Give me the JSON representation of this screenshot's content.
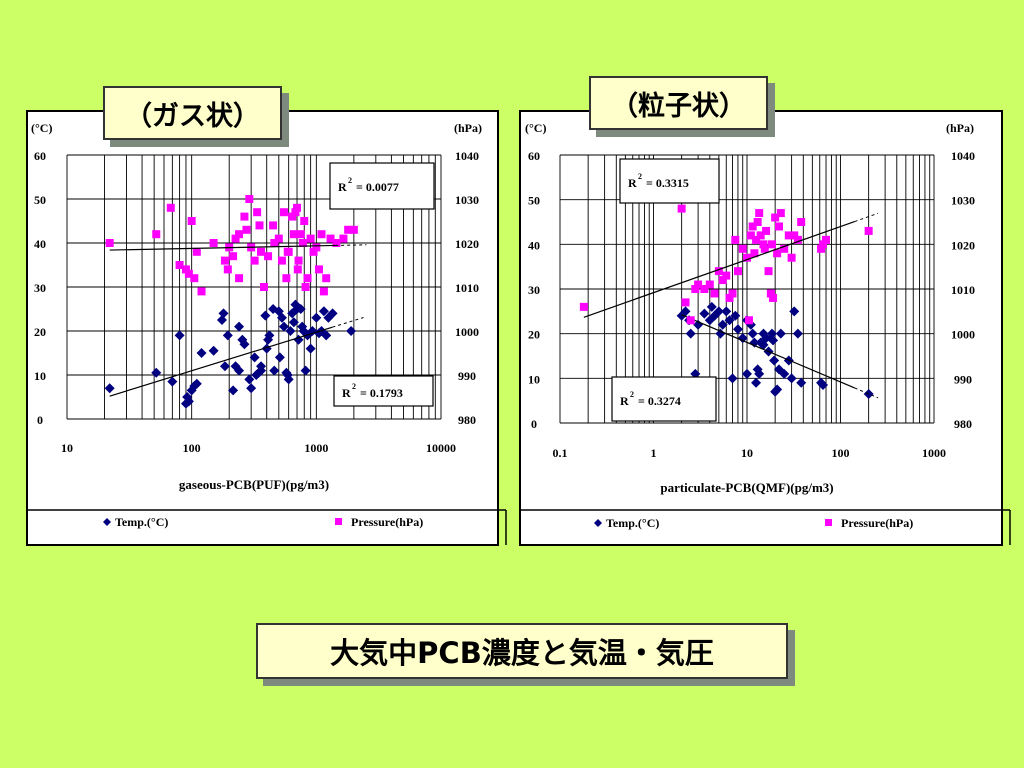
{
  "slide": {
    "label_gas": "（ガス状）",
    "label_particle": "（粒子状）",
    "title": "大気中PCB濃度と気温・気圧"
  },
  "colors": {
    "background": "#ccff66",
    "temp_marker": "#000080",
    "pressure_marker": "#ff00ff",
    "label_box": "#ffffcc"
  },
  "chart_data": [
    {
      "type": "scatter",
      "xlabel": "gaseous-PCB(PUF)(pg/m3)",
      "x_scale": "log",
      "xlim": [
        10,
        10000
      ],
      "x_ticks": [
        "10",
        "100",
        "1000",
        "10000"
      ],
      "y_left_label": "(°C)",
      "ylim_left": [
        0,
        60
      ],
      "y_left_ticks": [
        "0",
        "10",
        "20",
        "30",
        "40",
        "50",
        "60"
      ],
      "y_right_label": "(hPa)",
      "ylim_right": [
        980,
        1040
      ],
      "y_right_ticks": [
        "980",
        "990",
        "1000",
        "1010",
        "1020",
        "1030",
        "1040"
      ],
      "grid": true,
      "legend_position": "bottom",
      "series": [
        {
          "name": "Temp.(°C)",
          "axis": "left",
          "marker": "diamond",
          "color": "#000080",
          "points": [
            [
              22,
              7
            ],
            [
              52,
              10.5
            ],
            [
              70,
              8.5
            ],
            [
              80,
              19
            ],
            [
              90,
              3.5
            ],
            [
              92,
              5
            ],
            [
              95,
              4
            ],
            [
              100,
              6.5
            ],
            [
              105,
              7.5
            ],
            [
              110,
              8
            ],
            [
              120,
              15
            ],
            [
              150,
              15.5
            ],
            [
              175,
              22.5
            ],
            [
              180,
              24
            ],
            [
              185,
              12
            ],
            [
              195,
              19
            ],
            [
              215,
              6.5
            ],
            [
              225,
              12
            ],
            [
              240,
              21
            ],
            [
              240,
              11
            ],
            [
              255,
              18
            ],
            [
              265,
              17
            ],
            [
              290,
              9
            ],
            [
              300,
              7
            ],
            [
              320,
              14
            ],
            [
              330,
              10
            ],
            [
              345,
              10.5
            ],
            [
              360,
              11
            ],
            [
              360,
              12
            ],
            [
              390,
              23.5
            ],
            [
              400,
              16
            ],
            [
              410,
              18
            ],
            [
              420,
              19
            ],
            [
              450,
              25
            ],
            [
              460,
              11
            ],
            [
              500,
              24.5
            ],
            [
              510,
              14
            ],
            [
              530,
              23
            ],
            [
              550,
              21
            ],
            [
              575,
              10.5
            ],
            [
              590,
              10
            ],
            [
              600,
              9
            ],
            [
              620,
              20
            ],
            [
              640,
              24
            ],
            [
              660,
              22
            ],
            [
              680,
              26
            ],
            [
              700,
              25
            ],
            [
              720,
              18
            ],
            [
              750,
              25
            ],
            [
              770,
              21
            ],
            [
              790,
              20
            ],
            [
              820,
              11
            ],
            [
              850,
              19
            ],
            [
              900,
              16
            ],
            [
              930,
              20
            ],
            [
              1000,
              23
            ],
            [
              1050,
              19.5
            ],
            [
              1100,
              20
            ],
            [
              1150,
              24.5
            ],
            [
              1200,
              19
            ],
            [
              1250,
              23
            ],
            [
              1350,
              24
            ],
            [
              1700,
              8.5
            ],
            [
              1900,
              20
            ]
          ]
        },
        {
          "name": "Pressure(hPa)",
          "axis": "right",
          "marker": "square",
          "color": "#ff00ff",
          "points": [
            [
              22,
              1020
            ],
            [
              52,
              1022
            ],
            [
              68,
              1028
            ],
            [
              80,
              1015
            ],
            [
              90,
              1014
            ],
            [
              95,
              1013
            ],
            [
              100,
              1025
            ],
            [
              105,
              1012
            ],
            [
              110,
              1018
            ],
            [
              120,
              1009
            ],
            [
              150,
              1020
            ],
            [
              185,
              1016
            ],
            [
              195,
              1014
            ],
            [
              200,
              1019
            ],
            [
              215,
              1017
            ],
            [
              225,
              1021
            ],
            [
              240,
              1022
            ],
            [
              240,
              1012
            ],
            [
              265,
              1026
            ],
            [
              275,
              1023
            ],
            [
              290,
              1030
            ],
            [
              300,
              1019
            ],
            [
              320,
              1016
            ],
            [
              335,
              1027
            ],
            [
              350,
              1024
            ],
            [
              360,
              1018
            ],
            [
              380,
              1010
            ],
            [
              410,
              1017
            ],
            [
              450,
              1024
            ],
            [
              460,
              1020
            ],
            [
              500,
              1021
            ],
            [
              530,
              1016
            ],
            [
              550,
              1027
            ],
            [
              575,
              1012
            ],
            [
              590,
              1018
            ],
            [
              600,
              1018
            ],
            [
              640,
              1026
            ],
            [
              660,
              1022
            ],
            [
              680,
              1027
            ],
            [
              700,
              1028
            ],
            [
              710,
              1014
            ],
            [
              720,
              1016
            ],
            [
              750,
              1022
            ],
            [
              780,
              1020
            ],
            [
              800,
              1025
            ],
            [
              820,
              1010
            ],
            [
              850,
              1012
            ],
            [
              900,
              1021
            ],
            [
              950,
              1018
            ],
            [
              1000,
              1019
            ],
            [
              1050,
              1014
            ],
            [
              1100,
              1022
            ],
            [
              1150,
              1009
            ],
            [
              1200,
              1012
            ],
            [
              1300,
              1021
            ],
            [
              1450,
              1020
            ],
            [
              1650,
              1021
            ],
            [
              1800,
              1023
            ],
            [
              2000,
              1023
            ]
          ]
        }
      ],
      "trendlines": [
        {
          "series": "Temp.(°C)",
          "r2_label": "R",
          "r2_value": "= 0.1793"
        },
        {
          "series": "Pressure(hPa)",
          "r2_label": "R",
          "r2_value": "= 0.0077"
        }
      ],
      "legend": [
        "Temp.(°C)",
        "Pressure(hPa)"
      ]
    },
    {
      "type": "scatter",
      "xlabel": "particulate-PCB(QMF)(pg/m3)",
      "x_scale": "log",
      "xlim": [
        0.1,
        1000
      ],
      "x_ticks": [
        "0.1",
        "1",
        "10",
        "100",
        "1000"
      ],
      "y_left_label": "(°C)",
      "ylim_left": [
        0,
        60
      ],
      "y_left_ticks": [
        "0",
        "10",
        "20",
        "30",
        "40",
        "50",
        "60"
      ],
      "y_right_label": "(hPa)",
      "ylim_right": [
        980,
        1040
      ],
      "y_right_ticks": [
        "980",
        "990",
        "1000",
        "1010",
        "1020",
        "1030",
        "1040"
      ],
      "grid": true,
      "legend_position": "bottom",
      "series": [
        {
          "name": "Temp.(°C)",
          "axis": "left",
          "marker": "diamond",
          "color": "#000080",
          "points": [
            [
              2,
              24
            ],
            [
              2.2,
              25
            ],
            [
              2.4,
              23
            ],
            [
              2.5,
              20
            ],
            [
              2.8,
              11
            ],
            [
              3,
              22
            ],
            [
              3.5,
              24.5
            ],
            [
              4,
              23
            ],
            [
              4.2,
              26
            ],
            [
              4.5,
              24
            ],
            [
              5,
              25
            ],
            [
              5.2,
              20
            ],
            [
              5.5,
              22
            ],
            [
              6,
              25
            ],
            [
              6.5,
              23
            ],
            [
              7,
              10
            ],
            [
              7.5,
              24
            ],
            [
              8,
              21
            ],
            [
              9,
              19
            ],
            [
              10,
              11
            ],
            [
              10,
              23
            ],
            [
              11,
              22
            ],
            [
              11.5,
              20
            ],
            [
              12,
              18
            ],
            [
              12.5,
              9
            ],
            [
              13,
              12
            ],
            [
              13.5,
              11
            ],
            [
              14,
              18
            ],
            [
              15,
              17.5
            ],
            [
              15,
              20
            ],
            [
              16,
              19
            ],
            [
              17,
              16
            ],
            [
              18,
              19
            ],
            [
              18.5,
              20
            ],
            [
              19,
              18.5
            ],
            [
              19.5,
              14
            ],
            [
              20,
              7
            ],
            [
              21,
              7.5
            ],
            [
              22,
              12
            ],
            [
              23,
              20
            ],
            [
              25,
              11
            ],
            [
              28,
              14
            ],
            [
              30,
              10
            ],
            [
              32,
              25
            ],
            [
              35,
              20
            ],
            [
              38,
              9
            ],
            [
              62,
              9
            ],
            [
              65,
              8.5
            ],
            [
              200,
              6.5
            ]
          ]
        },
        {
          "name": "Pressure(hPa)",
          "axis": "right",
          "marker": "square",
          "color": "#ff00ff",
          "points": [
            [
              0.18,
              1006
            ],
            [
              2,
              1028
            ],
            [
              2.2,
              1007
            ],
            [
              2.5,
              1003
            ],
            [
              2.8,
              1010
            ],
            [
              3,
              1011
            ],
            [
              3.5,
              1010
            ],
            [
              4,
              1011
            ],
            [
              4.5,
              1009
            ],
            [
              5,
              1014
            ],
            [
              5.5,
              1012
            ],
            [
              6,
              1013
            ],
            [
              6.5,
              1008
            ],
            [
              7,
              1009
            ],
            [
              7.5,
              1021
            ],
            [
              8,
              1014
            ],
            [
              9,
              1019
            ],
            [
              10,
              1017
            ],
            [
              10.5,
              1003
            ],
            [
              11,
              1022
            ],
            [
              11.5,
              1024
            ],
            [
              12,
              1018
            ],
            [
              12.5,
              1021
            ],
            [
              13,
              1025
            ],
            [
              13.5,
              1027
            ],
            [
              14,
              1022
            ],
            [
              15,
              1020
            ],
            [
              15.5,
              1019
            ],
            [
              16,
              1023
            ],
            [
              17,
              1014
            ],
            [
              18,
              1009
            ],
            [
              18.5,
              1020
            ],
            [
              19,
              1008
            ],
            [
              20,
              1026
            ],
            [
              21,
              1018
            ],
            [
              22,
              1024
            ],
            [
              23,
              1027
            ],
            [
              25,
              1019
            ],
            [
              28,
              1022
            ],
            [
              30,
              1017
            ],
            [
              32,
              1022
            ],
            [
              35,
              1021
            ],
            [
              38,
              1025
            ],
            [
              62,
              1019
            ],
            [
              65,
              1020
            ],
            [
              70,
              1021
            ],
            [
              200,
              1023
            ]
          ]
        }
      ],
      "trendlines": [
        {
          "series": "Pressure(hPa)",
          "r2_label": "R",
          "r2_value": "= 0.3315"
        },
        {
          "series": "Temp.(°C)",
          "r2_label": "R",
          "r2_value": "= 0.3274"
        }
      ],
      "legend": [
        "Temp.(°C)",
        "Pressure(hPa)"
      ]
    }
  ]
}
